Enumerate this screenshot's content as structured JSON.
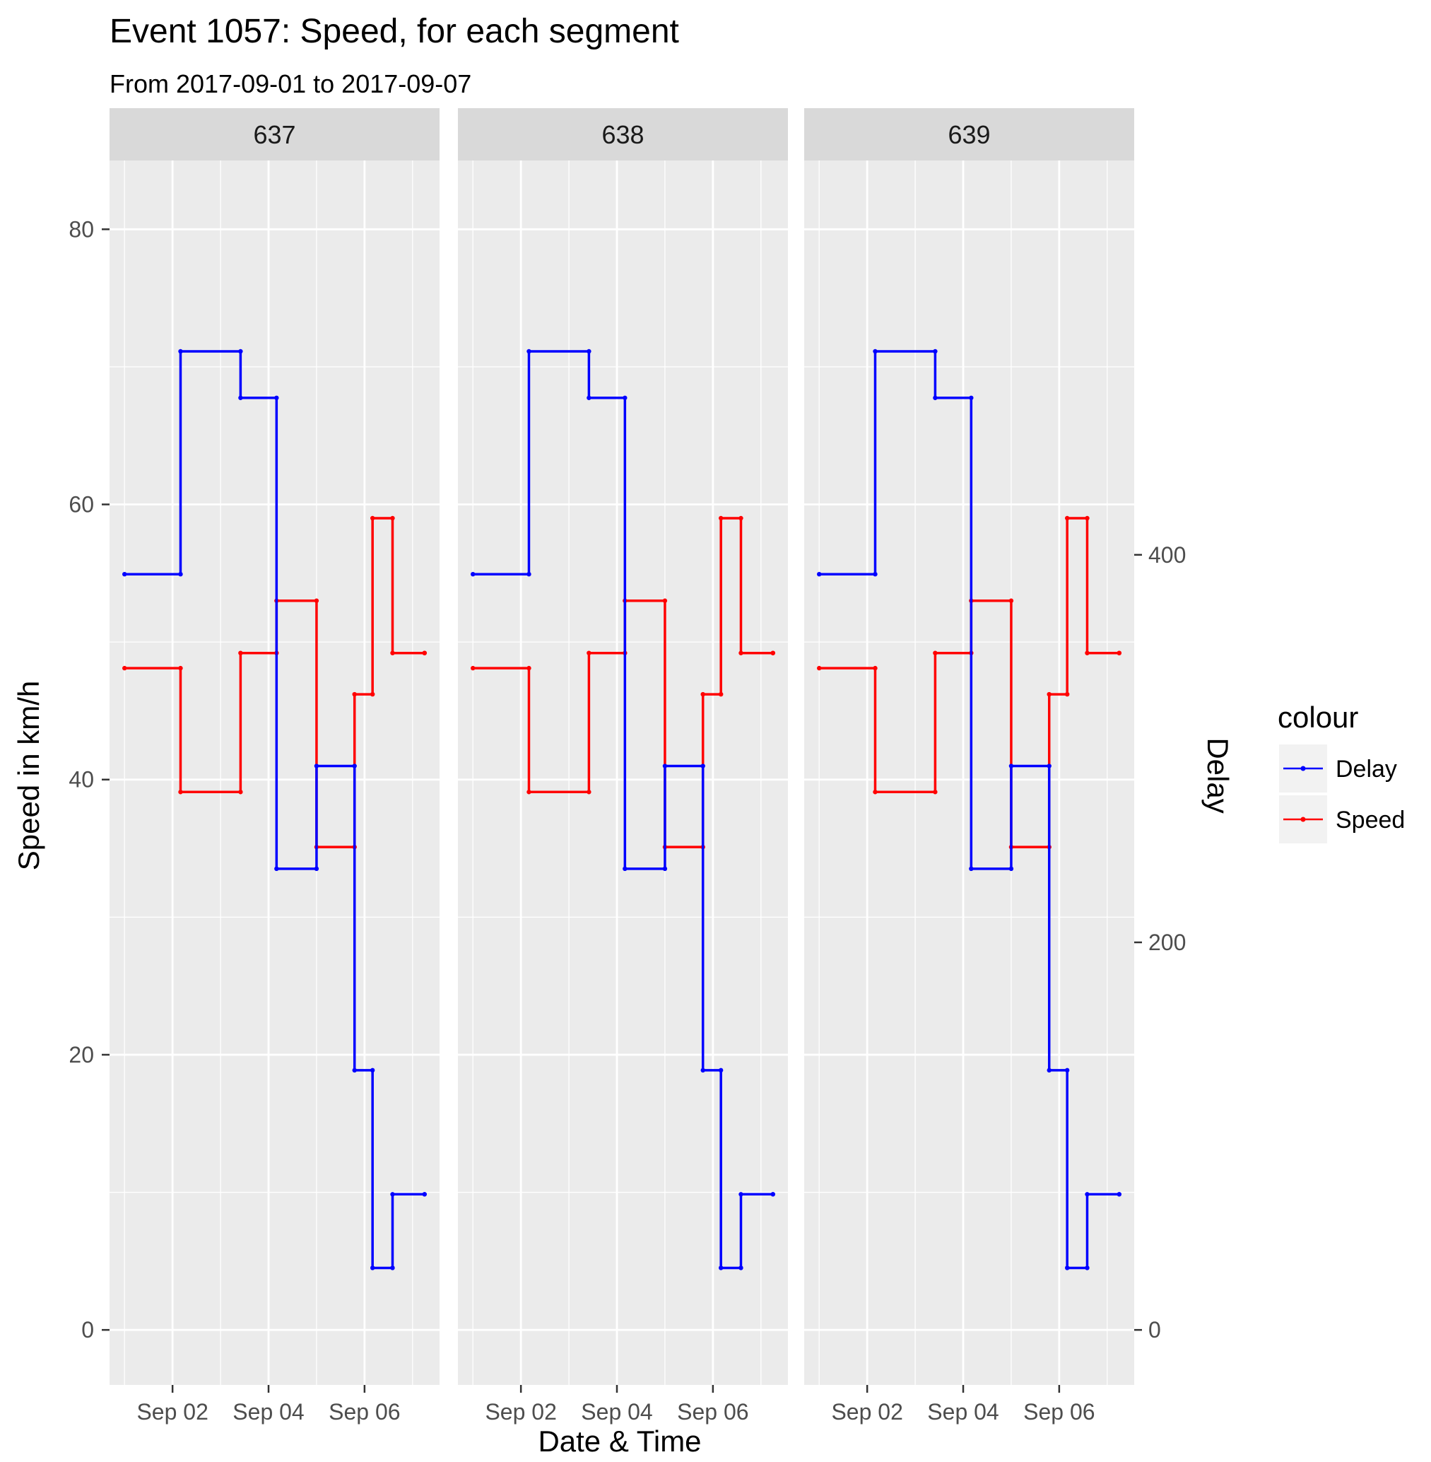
{
  "chart_data": {
    "type": "line",
    "title": "Event 1057: Speed, for each segment",
    "subtitle": "From 2017-09-01 to 2017-09-07",
    "xlabel": "Date & Time",
    "ylabel": "Speed in km/h",
    "y2label": "Delay",
    "xlim": [
      "2017-09-01 00:00",
      "2017-09-07 06:00"
    ],
    "x_ticks": [
      {
        "x": "2017-09-02",
        "label": "Sep 02"
      },
      {
        "x": "2017-09-04",
        "label": "Sep 04"
      },
      {
        "x": "2017-09-06",
        "label": "Sep 06"
      }
    ],
    "ylim": [
      -4,
      85
    ],
    "y_ticks": [
      0,
      20,
      40,
      60,
      80
    ],
    "y2lim": [
      -28.4,
      603.5
    ],
    "y2_ticks": [
      0,
      200,
      400
    ],
    "grid": true,
    "legend": {
      "title": "colour",
      "position": "right",
      "entries": [
        "Delay",
        "Speed"
      ]
    },
    "colors": {
      "Delay": "#0000ff",
      "Speed": "#ff0000",
      "panel_bg": "#ebebeb",
      "strip_bg": "#d9d9d9",
      "grid": "#ffffff"
    },
    "facets": [
      {
        "label": "637",
        "series": [
          {
            "name": "Delay",
            "axis": "right",
            "x": [
              "2017-09-01 00:00",
              "2017-09-02 04:00",
              "2017-09-03 10:00",
              "2017-09-04 04:00",
              "2017-09-05 00:00",
              "2017-09-05 19:00",
              "2017-09-06 04:00",
              "2017-09-06 14:00",
              "2017-09-07 06:00"
            ],
            "y": [
              390,
              505,
              481,
              238,
              291,
              134,
              32,
              70,
              70
            ]
          },
          {
            "name": "Speed",
            "axis": "left",
            "x": [
              "2017-09-01 00:00",
              "2017-09-02 04:00",
              "2017-09-03 10:00",
              "2017-09-04 04:00",
              "2017-09-05 00:00",
              "2017-09-05 19:00",
              "2017-09-06 04:00",
              "2017-09-06 14:00",
              "2017-09-07 06:00"
            ],
            "y": [
              48.1,
              39.1,
              49.2,
              53.0,
              35.1,
              46.2,
              59.0,
              49.2,
              49.2
            ]
          }
        ]
      },
      {
        "label": "638",
        "series": [
          {
            "name": "Delay",
            "axis": "right",
            "x": [
              "2017-09-01 00:00",
              "2017-09-02 04:00",
              "2017-09-03 10:00",
              "2017-09-04 04:00",
              "2017-09-05 00:00",
              "2017-09-05 19:00",
              "2017-09-06 04:00",
              "2017-09-06 14:00",
              "2017-09-07 06:00"
            ],
            "y": [
              390,
              505,
              481,
              238,
              291,
              134,
              32,
              70,
              70
            ]
          },
          {
            "name": "Speed",
            "axis": "left",
            "x": [
              "2017-09-01 00:00",
              "2017-09-02 04:00",
              "2017-09-03 10:00",
              "2017-09-04 04:00",
              "2017-09-05 00:00",
              "2017-09-05 19:00",
              "2017-09-06 04:00",
              "2017-09-06 14:00",
              "2017-09-07 06:00"
            ],
            "y": [
              48.1,
              39.1,
              49.2,
              53.0,
              35.1,
              46.2,
              59.0,
              49.2,
              49.2
            ]
          }
        ]
      },
      {
        "label": "639",
        "series": [
          {
            "name": "Delay",
            "axis": "right",
            "x": [
              "2017-09-01 00:00",
              "2017-09-02 04:00",
              "2017-09-03 10:00",
              "2017-09-04 04:00",
              "2017-09-05 00:00",
              "2017-09-05 19:00",
              "2017-09-06 04:00",
              "2017-09-06 14:00",
              "2017-09-07 06:00"
            ],
            "y": [
              390,
              505,
              481,
              238,
              291,
              134,
              32,
              70,
              70
            ]
          },
          {
            "name": "Speed",
            "axis": "left",
            "x": [
              "2017-09-01 00:00",
              "2017-09-02 04:00",
              "2017-09-03 10:00",
              "2017-09-04 04:00",
              "2017-09-05 00:00",
              "2017-09-05 19:00",
              "2017-09-06 04:00",
              "2017-09-06 14:00",
              "2017-09-07 06:00"
            ],
            "y": [
              48.1,
              39.1,
              49.2,
              53.0,
              35.1,
              46.2,
              59.0,
              49.2,
              49.2
            ]
          }
        ]
      }
    ]
  }
}
